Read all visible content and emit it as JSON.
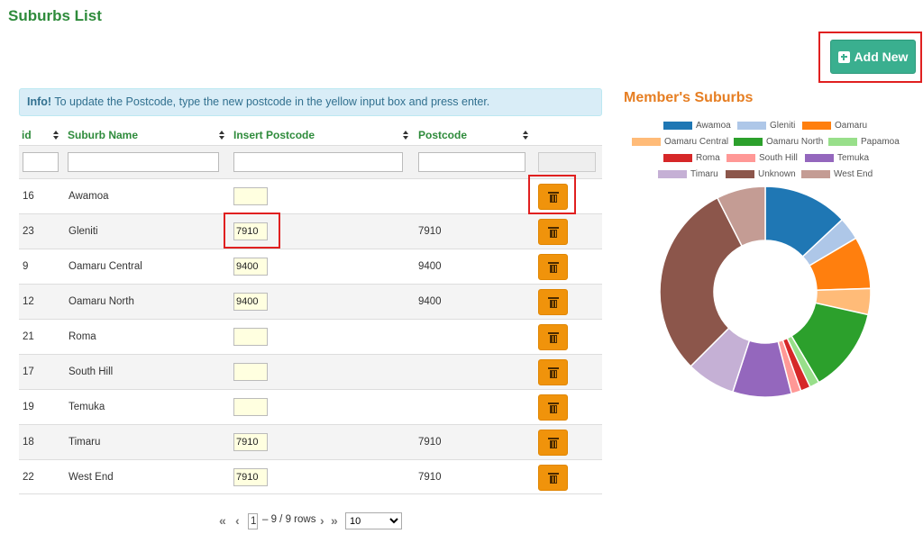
{
  "page": {
    "title": "Suburbs List"
  },
  "toolbar": {
    "add_label": "Add New"
  },
  "info": {
    "strong": "Info!",
    "text": " To update the Postcode, type the new postcode in the yellow input box and press enter."
  },
  "table": {
    "headers": [
      "id",
      "Suburb Name",
      "Insert Postcode",
      "Postcode"
    ],
    "rows": [
      {
        "id": "16",
        "name": "Awamoa",
        "input": "",
        "postcode": ""
      },
      {
        "id": "23",
        "name": "Gleniti",
        "input": "7910",
        "postcode": "7910"
      },
      {
        "id": "9",
        "name": "Oamaru Central",
        "input": "9400",
        "postcode": "9400"
      },
      {
        "id": "12",
        "name": "Oamaru North",
        "input": "9400",
        "postcode": "9400"
      },
      {
        "id": "21",
        "name": "Roma",
        "input": "",
        "postcode": ""
      },
      {
        "id": "17",
        "name": "South Hill",
        "input": "",
        "postcode": ""
      },
      {
        "id": "19",
        "name": "Temuka",
        "input": "",
        "postcode": ""
      },
      {
        "id": "18",
        "name": "Timaru",
        "input": "7910",
        "postcode": "7910"
      },
      {
        "id": "22",
        "name": "West End",
        "input": "7910",
        "postcode": "7910"
      }
    ]
  },
  "pager": {
    "current_page": "1",
    "info": "– 9 / 9 rows",
    "page_size": "10",
    "first": "«",
    "prev": "‹",
    "next": "›",
    "last": "»"
  },
  "icons": {
    "add": "plus-square-icon",
    "delete": "trash-icon",
    "sort": "sort-icon"
  },
  "chart_data": {
    "type": "pie",
    "title": "Member's Suburbs",
    "legend_position": "top",
    "donut": true,
    "series": [
      {
        "name": "Awamoa",
        "value": 13,
        "color": "#1f77b4"
      },
      {
        "name": "Gleniti",
        "value": 3.5,
        "color": "#aec7e8"
      },
      {
        "name": "Oamaru",
        "value": 8,
        "color": "#ff7f0e"
      },
      {
        "name": "Oamaru Central",
        "value": 4,
        "color": "#ffbb78"
      },
      {
        "name": "Oamaru North",
        "value": 13,
        "color": "#2ca02c"
      },
      {
        "name": "Papamoa",
        "value": 1.5,
        "color": "#98df8a"
      },
      {
        "name": "Roma",
        "value": 1.5,
        "color": "#d62728"
      },
      {
        "name": "South Hill",
        "value": 1.5,
        "color": "#ff9896"
      },
      {
        "name": "Temuka",
        "value": 9,
        "color": "#9467bd"
      },
      {
        "name": "Timaru",
        "value": 7.5,
        "color": "#c5b0d5"
      },
      {
        "name": "Unknown",
        "value": 30,
        "color": "#8c564b"
      },
      {
        "name": "West End",
        "value": 7.5,
        "color": "#c49c94"
      }
    ]
  }
}
